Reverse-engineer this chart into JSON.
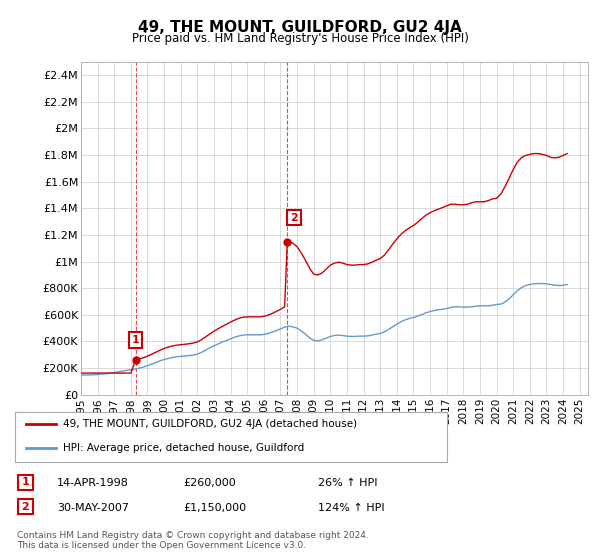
{
  "title": "49, THE MOUNT, GUILDFORD, GU2 4JA",
  "subtitle": "Price paid vs. HM Land Registry's House Price Index (HPI)",
  "background_color": "#ffffff",
  "plot_bg_color": "#ffffff",
  "grid_color": "#cccccc",
  "ylim": [
    0,
    2500000
  ],
  "yticks": [
    0,
    200000,
    400000,
    600000,
    800000,
    1000000,
    1200000,
    1400000,
    1600000,
    1800000,
    2000000,
    2200000,
    2400000
  ],
  "ytick_labels": [
    "£0",
    "£200K",
    "£400K",
    "£600K",
    "£800K",
    "£1M",
    "£1.2M",
    "£1.4M",
    "£1.6M",
    "£1.8M",
    "£2M",
    "£2.2M",
    "£2.4M"
  ],
  "xlim_start": 1995.0,
  "xlim_end": 2025.5,
  "hpi_line_color": "#6699cc",
  "property_line_color": "#cc0000",
  "sale1_x": 1998.28,
  "sale1_y": 260000,
  "sale1_label": "1",
  "sale1_date": "14-APR-1998",
  "sale1_price": "£260,000",
  "sale1_hpi": "26% ↑ HPI",
  "sale2_x": 2007.41,
  "sale2_y": 1150000,
  "sale2_label": "2",
  "sale2_date": "30-MAY-2007",
  "sale2_price": "£1,150,000",
  "sale2_hpi": "124% ↑ HPI",
  "legend_label_property": "49, THE MOUNT, GUILDFORD, GU2 4JA (detached house)",
  "legend_label_hpi": "HPI: Average price, detached house, Guildford",
  "footer": "Contains HM Land Registry data © Crown copyright and database right 2024.\nThis data is licensed under the Open Government Licence v3.0.",
  "hpi_data_x": [
    1995.0,
    1995.25,
    1995.5,
    1995.75,
    1996.0,
    1996.25,
    1996.5,
    1996.75,
    1997.0,
    1997.25,
    1997.5,
    1997.75,
    1998.0,
    1998.25,
    1998.5,
    1998.75,
    1999.0,
    1999.25,
    1999.5,
    1999.75,
    2000.0,
    2000.25,
    2000.5,
    2000.75,
    2001.0,
    2001.25,
    2001.5,
    2001.75,
    2002.0,
    2002.25,
    2002.5,
    2002.75,
    2003.0,
    2003.25,
    2003.5,
    2003.75,
    2004.0,
    2004.25,
    2004.5,
    2004.75,
    2005.0,
    2005.25,
    2005.5,
    2005.75,
    2006.0,
    2006.25,
    2006.5,
    2006.75,
    2007.0,
    2007.25,
    2007.5,
    2007.75,
    2008.0,
    2008.25,
    2008.5,
    2008.75,
    2009.0,
    2009.25,
    2009.5,
    2009.75,
    2010.0,
    2010.25,
    2010.5,
    2010.75,
    2011.0,
    2011.25,
    2011.5,
    2011.75,
    2012.0,
    2012.25,
    2012.5,
    2012.75,
    2013.0,
    2013.25,
    2013.5,
    2013.75,
    2014.0,
    2014.25,
    2014.5,
    2014.75,
    2015.0,
    2015.25,
    2015.5,
    2015.75,
    2016.0,
    2016.25,
    2016.5,
    2016.75,
    2017.0,
    2017.25,
    2017.5,
    2017.75,
    2018.0,
    2018.25,
    2018.5,
    2018.75,
    2019.0,
    2019.25,
    2019.5,
    2019.75,
    2020.0,
    2020.25,
    2020.5,
    2020.75,
    2021.0,
    2021.25,
    2021.5,
    2021.75,
    2022.0,
    2022.25,
    2022.5,
    2022.75,
    2023.0,
    2023.25,
    2023.5,
    2023.75,
    2024.0,
    2024.25
  ],
  "hpi_data_y": [
    148000,
    148500,
    149000,
    150000,
    152000,
    155000,
    158000,
    162000,
    167000,
    173000,
    178000,
    183000,
    188000,
    193000,
    200000,
    208000,
    218000,
    230000,
    243000,
    255000,
    265000,
    273000,
    280000,
    285000,
    288000,
    291000,
    294000,
    298000,
    305000,
    318000,
    335000,
    352000,
    367000,
    382000,
    396000,
    408000,
    420000,
    432000,
    442000,
    448000,
    450000,
    450000,
    450000,
    450000,
    453000,
    460000,
    470000,
    482000,
    494000,
    508000,
    515000,
    510000,
    500000,
    480000,
    455000,
    428000,
    408000,
    405000,
    412000,
    425000,
    438000,
    445000,
    448000,
    445000,
    440000,
    438000,
    438000,
    440000,
    440000,
    442000,
    448000,
    455000,
    460000,
    472000,
    490000,
    510000,
    530000,
    548000,
    562000,
    572000,
    580000,
    590000,
    602000,
    615000,
    625000,
    632000,
    638000,
    642000,
    648000,
    655000,
    660000,
    660000,
    658000,
    658000,
    660000,
    665000,
    668000,
    668000,
    668000,
    672000,
    678000,
    680000,
    695000,
    720000,
    750000,
    780000,
    805000,
    820000,
    828000,
    832000,
    835000,
    835000,
    832000,
    828000,
    822000,
    820000,
    822000,
    828000
  ],
  "property_data_x": [
    1995.0,
    1995.25,
    1995.5,
    1995.75,
    1996.0,
    1996.25,
    1996.5,
    1996.75,
    1997.0,
    1997.25,
    1997.5,
    1997.75,
    1998.0,
    1998.28,
    1998.5,
    1998.75,
    1999.0,
    1999.25,
    1999.5,
    1999.75,
    2000.0,
    2000.25,
    2000.5,
    2000.75,
    2001.0,
    2001.25,
    2001.5,
    2001.75,
    2002.0,
    2002.25,
    2002.5,
    2002.75,
    2003.0,
    2003.25,
    2003.5,
    2003.75,
    2004.0,
    2004.25,
    2004.5,
    2004.75,
    2005.0,
    2005.25,
    2005.5,
    2005.75,
    2006.0,
    2006.25,
    2006.5,
    2006.75,
    2007.0,
    2007.25,
    2007.41,
    2007.75,
    2008.0,
    2008.25,
    2008.5,
    2008.75,
    2009.0,
    2009.25,
    2009.5,
    2009.75,
    2010.0,
    2010.25,
    2010.5,
    2010.75,
    2011.0,
    2011.25,
    2011.5,
    2011.75,
    2012.0,
    2012.25,
    2012.5,
    2012.75,
    2013.0,
    2013.25,
    2013.5,
    2013.75,
    2014.0,
    2014.25,
    2014.5,
    2014.75,
    2015.0,
    2015.25,
    2015.5,
    2015.75,
    2016.0,
    2016.25,
    2016.5,
    2016.75,
    2017.0,
    2017.25,
    2017.5,
    2017.75,
    2018.0,
    2018.25,
    2018.5,
    2018.75,
    2019.0,
    2019.25,
    2019.5,
    2019.75,
    2020.0,
    2020.25,
    2020.5,
    2020.75,
    2021.0,
    2021.25,
    2021.5,
    2021.75,
    2022.0,
    2022.25,
    2022.5,
    2022.75,
    2023.0,
    2023.25,
    2023.5,
    2023.75,
    2024.0,
    2024.25
  ],
  "property_data_y": [
    163000,
    163000,
    163000,
    163000,
    163000,
    163000,
    163000,
    163000,
    163000,
    163000,
    163000,
    163000,
    163000,
    260000,
    269000,
    278000,
    290000,
    304000,
    319000,
    334000,
    348000,
    358000,
    366000,
    372000,
    376000,
    379000,
    383000,
    388000,
    397000,
    413000,
    435000,
    457000,
    477000,
    496000,
    513000,
    529000,
    546000,
    561000,
    574000,
    582000,
    585000,
    585000,
    585000,
    585000,
    589000,
    597000,
    610000,
    626000,
    642000,
    660000,
    1150000,
    1138000,
    1111000,
    1065000,
    1010000,
    950000,
    905000,
    899000,
    914000,
    943000,
    973000,
    988000,
    995000,
    988000,
    977000,
    973000,
    973000,
    977000,
    977000,
    982000,
    995000,
    1010000,
    1022000,
    1048000,
    1087000,
    1130000,
    1170000,
    1204000,
    1231000,
    1252000,
    1270000,
    1295000,
    1322000,
    1348000,
    1366000,
    1381000,
    1393000,
    1405000,
    1418000,
    1430000,
    1430000,
    1426000,
    1426000,
    1430000,
    1441000,
    1448000,
    1448000,
    1448000,
    1457000,
    1470000,
    1474000,
    1505000,
    1560000,
    1624000,
    1690000,
    1746000,
    1780000,
    1796000,
    1804000,
    1810000,
    1810000,
    1804000,
    1796000,
    1782000,
    1778000,
    1782000,
    1796000,
    1810000
  ],
  "vline1_x": 1998.28,
  "vline2_x": 2007.41,
  "vline_color": "#cc0000",
  "marker_box_color": "#cc0000",
  "marker_box_facecolor": "#ffffff"
}
